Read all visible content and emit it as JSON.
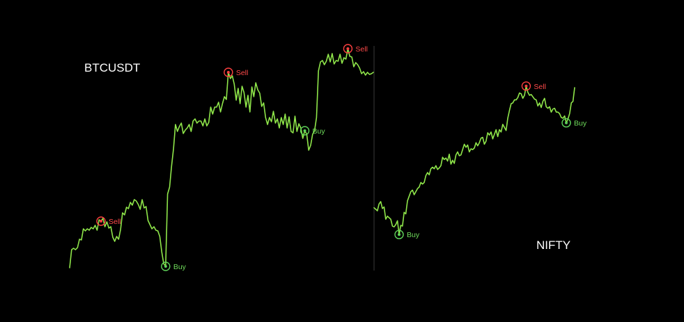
{
  "colors": {
    "background": "#000000",
    "line": "#8fe64a",
    "buy": "#5fd35a",
    "sell": "#ff4040",
    "divider": "#3a3a3a",
    "title": "#ffffff"
  },
  "chart_data": [
    {
      "type": "line",
      "title": "BTCUSDT",
      "grid": false,
      "series": [
        {
          "values": [
            4,
            30,
            32,
            30,
            33,
            45,
            44,
            60,
            57,
            60,
            58,
            62,
            60,
            65,
            58,
            73,
            71,
            75,
            63,
            70,
            61,
            63,
            48,
            42,
            49,
            45,
            59,
            83,
            80,
            91,
            89,
            98,
            94,
            102,
            100,
            95,
            88,
            102,
            90,
            92,
            72,
            66,
            60,
            63,
            58,
            57,
            49,
            27,
            10,
            6,
            110,
            120,
            150,
            175,
            210,
            200,
            207,
            212,
            197,
            202,
            205,
            210,
            200,
            215,
            218,
            212,
            215,
            215,
            208,
            218,
            208,
            213,
            235,
            225,
            235,
            235,
            242,
            228,
            240,
            250,
            246,
            285,
            276,
            280,
            268,
            245,
            262,
            240,
            265,
            256,
            235,
            252,
            228,
            264,
            250,
            270,
            260,
            255,
            236,
            241,
            220,
            210,
            220,
            214,
            229,
            212,
            218,
            205,
            220,
            210,
            225,
            205,
            221,
            200,
            198,
            222,
            200,
            211,
            205,
            190,
            201,
            196,
            173,
            180,
            196,
            201,
            220,
            287,
            300,
            302,
            296,
            301,
            311,
            300,
            312,
            297,
            302,
            301,
            311,
            298,
            306,
            304,
            319,
            308,
            307,
            293,
            299,
            296,
            291,
            283,
            286,
            281,
            285,
            282,
            283,
            285
          ]
        }
      ],
      "signals": [
        {
          "type": "Sell",
          "index": 16,
          "label": "Sell"
        },
        {
          "type": "Buy",
          "index": 49,
          "label": "Buy"
        },
        {
          "type": "Sell",
          "index": 81,
          "label": "Sell"
        },
        {
          "type": "Buy",
          "index": 120,
          "label": "Buy"
        },
        {
          "type": "Sell",
          "index": 142,
          "label": "Sell"
        }
      ]
    },
    {
      "type": "line",
      "title": "NIFTY",
      "grid": false,
      "series": [
        {
          "values": [
            83,
            81,
            79,
            88,
            91,
            82,
            84,
            68,
            72,
            70,
            68,
            59,
            58,
            61,
            66,
            48,
            60,
            59,
            77,
            75,
            92,
            98,
            104,
            106,
            100,
            104,
            108,
            110,
            116,
            114,
            116,
            125,
            129,
            126,
            134,
            136,
            134,
            138,
            133,
            135,
            138,
            149,
            146,
            148,
            144,
            153,
            140,
            145,
            141,
            152,
            156,
            151,
            152,
            159,
            166,
            162,
            165,
            156,
            160,
            159,
            161,
            168,
            164,
            168,
            174,
            175,
            166,
            170,
            181,
            178,
            182,
            173,
            179,
            185,
            176,
            185,
            182,
            192,
            188,
            184,
            200,
            210,
            219,
            220,
            224,
            224,
            227,
            233,
            232,
            226,
            230,
            242,
            234,
            230,
            231,
            228,
            225,
            224,
            216,
            220,
            214,
            222,
            226,
            215,
            213,
            215,
            208,
            212,
            213,
            208,
            208,
            206,
            201,
            200,
            203,
            194,
            199,
            206,
            220,
            222,
            240
          ]
        }
      ],
      "signals": [
        {
          "type": "Buy",
          "index": 15,
          "label": "Buy"
        },
        {
          "type": "Sell",
          "index": 91,
          "label": "Sell"
        },
        {
          "type": "Buy",
          "index": 115,
          "label": "Buy"
        }
      ]
    }
  ]
}
